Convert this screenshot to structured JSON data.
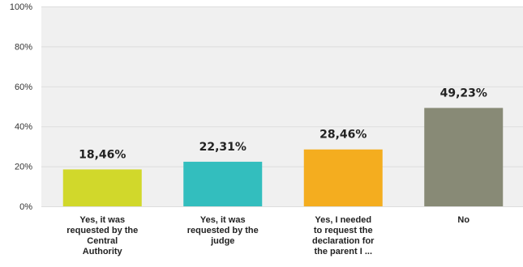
{
  "chart_data": {
    "type": "bar",
    "categories": [
      [
        "Yes, it was",
        "requested by the",
        "Central",
        "Authority"
      ],
      [
        "Yes, it was",
        "requested by the",
        "judge"
      ],
      [
        "Yes, I needed",
        "to request the",
        "declaration for",
        "the parent I ..."
      ],
      [
        "No"
      ]
    ],
    "values": [
      18.46,
      22.31,
      28.46,
      49.23
    ],
    "data_labels": [
      "18,46%",
      "22,31%",
      "28,46%",
      "49,23%"
    ],
    "colors": [
      "#D1D82B",
      "#33BEBE",
      "#F4AD1F",
      "#888A76"
    ],
    "ylim": [
      0,
      100
    ],
    "yticks": [
      0,
      20,
      40,
      60,
      80,
      100
    ],
    "ytick_labels": [
      "0%",
      "20%",
      "40%",
      "60%",
      "80%",
      "100%"
    ],
    "grid": true,
    "plot_background": "#F0F0F0",
    "title": "",
    "xlabel": "",
    "ylabel": ""
  }
}
